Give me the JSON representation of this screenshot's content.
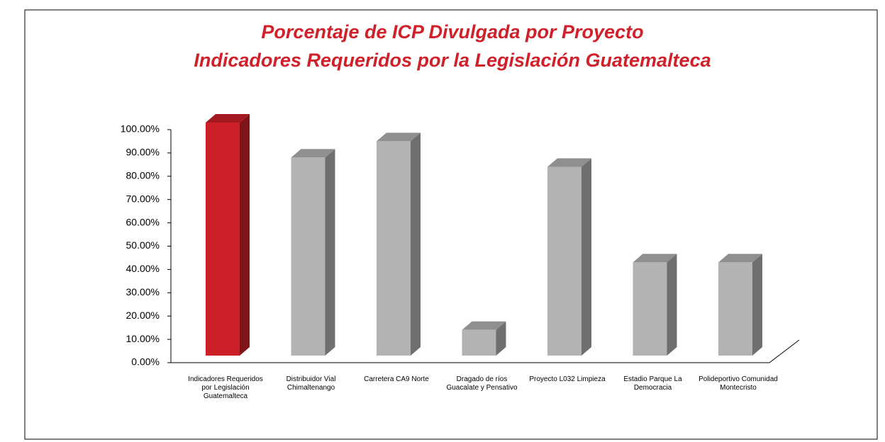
{
  "chart_data": {
    "type": "bar3d",
    "title": "Porcentaje de ICP Divulgada por Proyecto",
    "subtitle": "Indicadores Requeridos por la Legislación Guatemalteca",
    "categories": [
      "Indicadores Requeridos por Legislación Guatemalteca",
      "Distribuidor Vial Chimaltenango",
      "Carretera CA9 Norte",
      "Dragado de ríos Guacalate y Pensativo",
      "Proyecto L032 Limpieza",
      "Estadio Parque La Democracia",
      "Polideportivo Comunidad Montecristo"
    ],
    "values": [
      100,
      85,
      92,
      11,
      81,
      40,
      40
    ],
    "colors": [
      "#cc1f27",
      "#b3b3b3",
      "#b3b3b3",
      "#b3b3b3",
      "#b3b3b3",
      "#b3b3b3",
      "#b3b3b3"
    ],
    "ylim": [
      0,
      100
    ],
    "yticks": [
      {
        "value": 0,
        "label": "0.00%"
      },
      {
        "value": 10,
        "label": "10.00%"
      },
      {
        "value": 20,
        "label": "20.00%"
      },
      {
        "value": 30,
        "label": "30.00%"
      },
      {
        "value": 40,
        "label": "40.00%"
      },
      {
        "value": 50,
        "label": "50.00%"
      },
      {
        "value": 60,
        "label": "60.00%"
      },
      {
        "value": 70,
        "label": "70.00%"
      },
      {
        "value": 80,
        "label": "80.00%"
      },
      {
        "value": 90,
        "label": "90.00%"
      },
      {
        "value": 100,
        "label": "100.00%"
      }
    ]
  }
}
